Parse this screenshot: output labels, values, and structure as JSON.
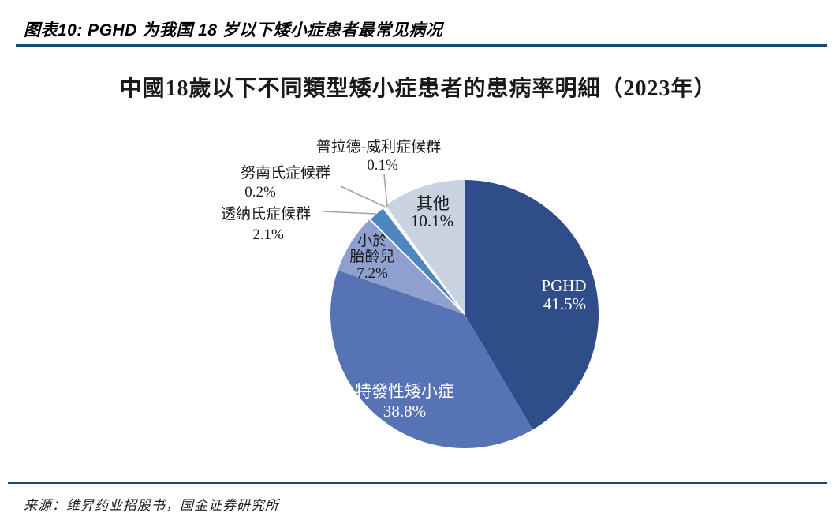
{
  "page": {
    "header": {
      "title": "图表10: PGHD 为我国 18 岁以下矮小症患者最常见病况"
    },
    "footer": {
      "source": "来源：维昇药业招股书，国金证券研究所"
    },
    "accent_color": "#174a6b"
  },
  "chart_data": {
    "type": "pie",
    "title": "中國18歲以下不同類型矮小症患者的患病率明細（2023年）",
    "year": "2023",
    "value_suffix": "%",
    "direction": "clockwise",
    "start_angle_deg": 0,
    "legend_position": "none",
    "leader_line_color": "#a3a3a3",
    "slices": [
      {
        "label": "PGHD",
        "value": 41.5,
        "display": "41.5%",
        "color": "#2f4d89",
        "label_placement": "inside",
        "text_color": "#ffffff"
      },
      {
        "label": "特發性矮小症",
        "value": 38.8,
        "display": "38.8%",
        "color": "#5673b5",
        "label_placement": "inside",
        "text_color": "#ffffff"
      },
      {
        "label": "小於胎齡兒",
        "label_lines": [
          "小於",
          "胎齡兒"
        ],
        "value": 7.2,
        "display": "7.2%",
        "color": "#8f9fce",
        "label_placement": "inside",
        "text_color": "#1a1a1a"
      },
      {
        "label": "透納氏症候群",
        "value": 2.1,
        "display": "2.1%",
        "color": "#4e86c0",
        "label_placement": "outside",
        "text_color": "#1a1a1a"
      },
      {
        "label": "努南氏症候群",
        "value": 0.2,
        "display": "0.2%",
        "color": "#a9c0dc",
        "label_placement": "outside",
        "text_color": "#1a1a1a"
      },
      {
        "label": "普拉德-威利症候群",
        "value": 0.1,
        "display": "0.1%",
        "color": "#d6dfe9",
        "label_placement": "outside",
        "text_color": "#1a1a1a"
      },
      {
        "label": "其他",
        "value": 10.1,
        "display": "10.1%",
        "color": "#c8d2e0",
        "label_placement": "inside",
        "text_color": "#1a1a1a"
      }
    ]
  }
}
